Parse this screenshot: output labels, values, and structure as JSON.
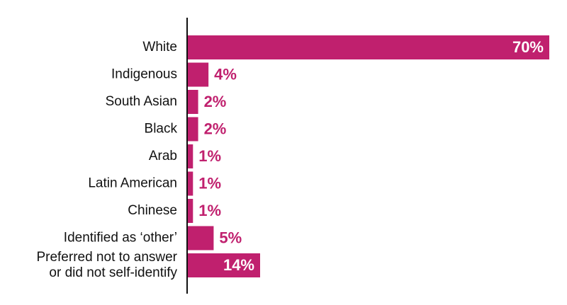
{
  "chart_data": {
    "type": "bar",
    "orientation": "horizontal",
    "categories": [
      "White",
      "Indigenous",
      "South Asian",
      "Black",
      "Arab",
      "Latin American",
      "Chinese",
      "Identified as ‘other’",
      "Preferred not to answer\nor did not self-identify"
    ],
    "values": [
      70,
      4,
      2,
      2,
      1,
      1,
      1,
      5,
      14
    ],
    "value_labels": [
      "70%",
      "4%",
      "2%",
      "2%",
      "1%",
      "1%",
      "1%",
      "5%",
      "14%"
    ],
    "color": "#c0206e"
  }
}
